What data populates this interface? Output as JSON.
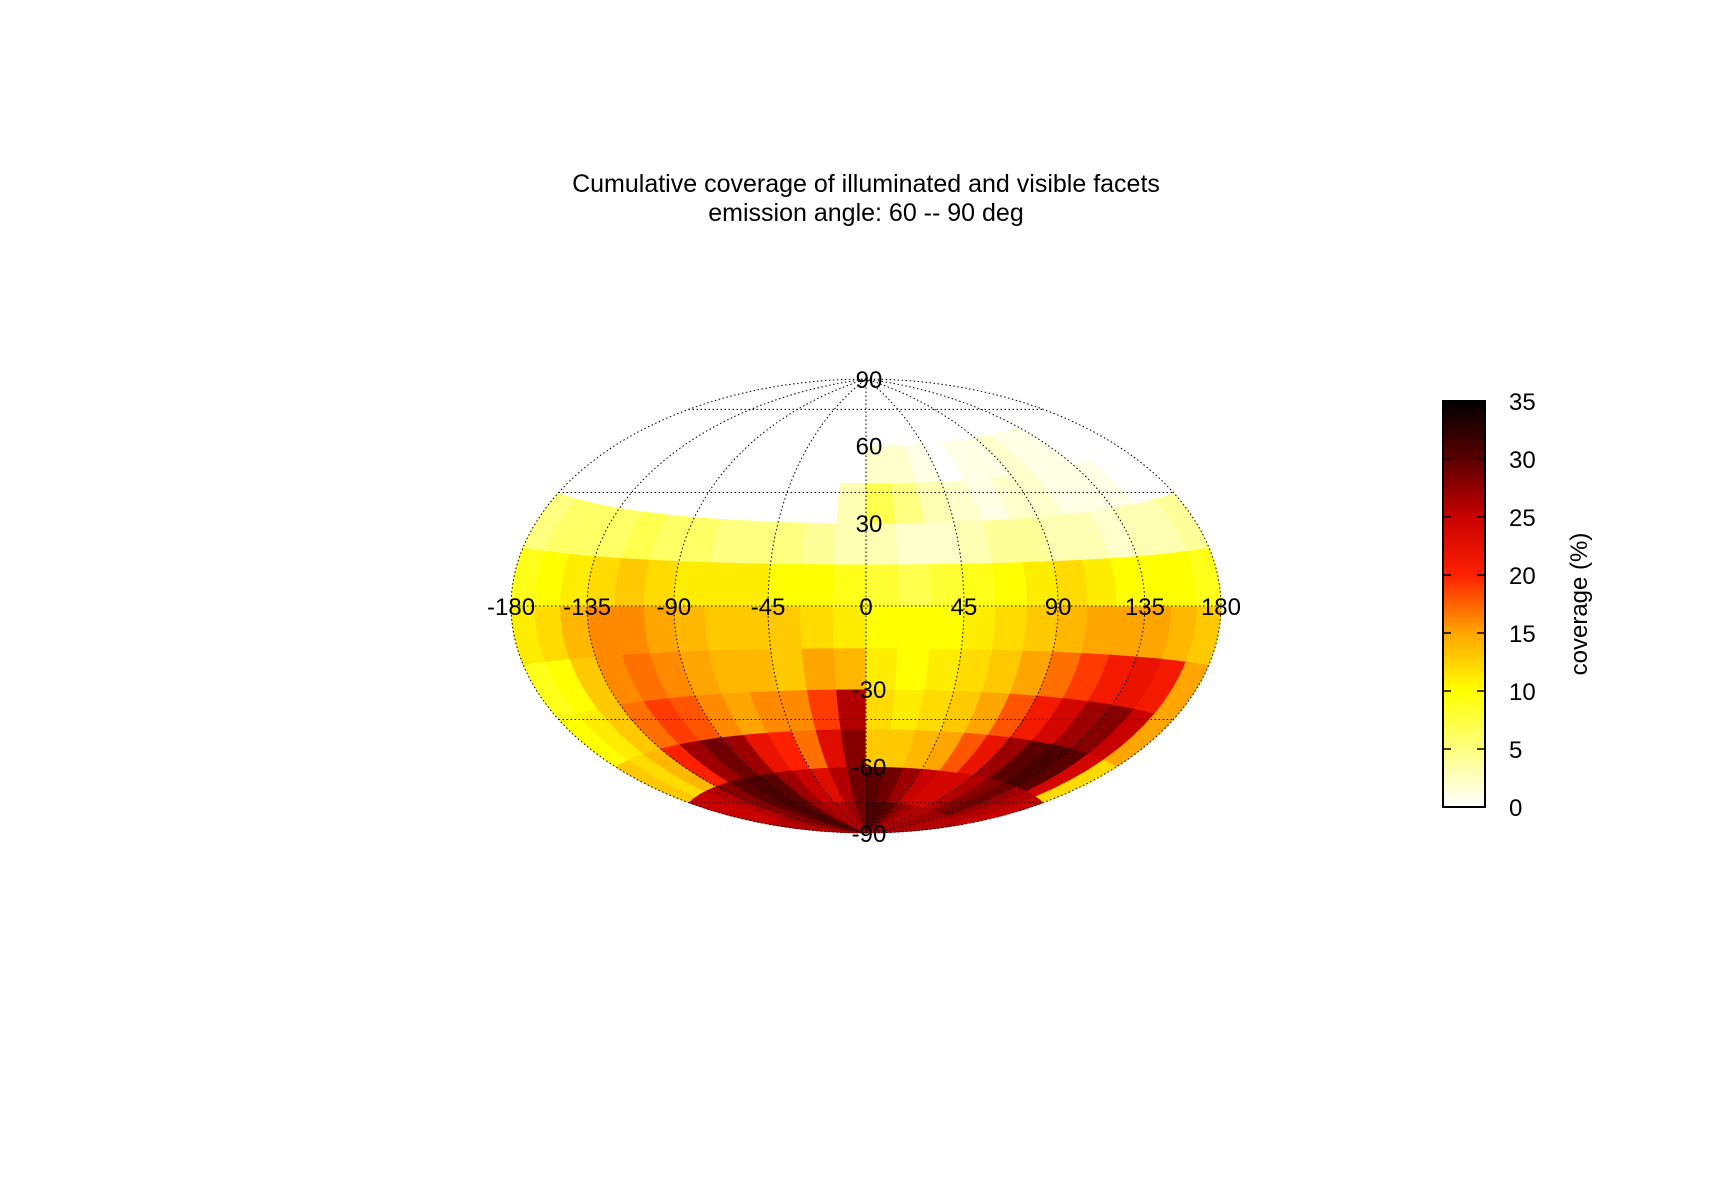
{
  "chart_data": {
    "type": "heatmap",
    "projection": "hammer-aitoff",
    "title": "Cumulative coverage of illuminated and visible facets",
    "subtitle": "emission angle: 60 -- 90 deg",
    "x_ticks": [
      "-180",
      "-135",
      "-90",
      "-45",
      "0",
      "45",
      "90",
      "135",
      "180"
    ],
    "y_ticks": [
      "90",
      "60",
      "30",
      "-30",
      "-60",
      "-90"
    ],
    "xlim": [
      -180,
      180
    ],
    "ylim": [
      -90,
      90
    ],
    "grid": true,
    "colorbar": {
      "label": "coverage (%)",
      "ticks": [
        "0",
        "5",
        "10",
        "15",
        "20",
        "25",
        "30",
        "35"
      ],
      "range": [
        0,
        35
      ],
      "colormap": [
        "#ffffff",
        "#ffff80",
        "#ffff00",
        "#ffa500",
        "#ff2000",
        "#c80000",
        "#5a0000",
        "#000000"
      ],
      "colormap_stops": [
        0,
        5,
        10,
        15,
        20,
        25,
        30,
        35
      ]
    },
    "lon_bins": [
      -180,
      -165,
      -150,
      -135,
      -120,
      -105,
      -90,
      -75,
      -60,
      -45,
      -30,
      -15,
      0,
      15,
      30,
      45,
      60,
      75,
      90,
      105,
      120,
      135,
      150,
      165,
      180
    ],
    "lat_bins": [
      -90,
      -75,
      -60,
      -45,
      -30,
      -15,
      0,
      15,
      30,
      45,
      60,
      75,
      90
    ],
    "values": [
      [
        26,
        26,
        27,
        28,
        30,
        31,
        30,
        27,
        26,
        26,
        27,
        29,
        31,
        31,
        30,
        28,
        27,
        26,
        26,
        27,
        27,
        26,
        26,
        26
      ],
      [
        25,
        25,
        26,
        28,
        30,
        31,
        30,
        27,
        25,
        23,
        26,
        29,
        30,
        29,
        27,
        25,
        24,
        24,
        26,
        28,
        29,
        27,
        26,
        25
      ],
      [
        13,
        12,
        14,
        20,
        27,
        29,
        27,
        22,
        20,
        17,
        23,
        28,
        13,
        13,
        14,
        15,
        18,
        22,
        27,
        30,
        31,
        30,
        24,
        12
      ],
      [
        10,
        11,
        13,
        17,
        19,
        18,
        16,
        15,
        16,
        16,
        19,
        26,
        12,
        11,
        12,
        13,
        15,
        18,
        21,
        24,
        27,
        28,
        25,
        15
      ],
      [
        9,
        10,
        13,
        16,
        17,
        16,
        15,
        14,
        14,
        13,
        15,
        14,
        11,
        10,
        11,
        12,
        13,
        15,
        17,
        19,
        21,
        22,
        21,
        15
      ],
      [
        11,
        12,
        14,
        16,
        16,
        15,
        14,
        13,
        13,
        13,
        12,
        11,
        10,
        10,
        10,
        11,
        12,
        13,
        14,
        15,
        15,
        15,
        14,
        13
      ],
      [
        9,
        10,
        11,
        12,
        13,
        12,
        11,
        11,
        11,
        10,
        10,
        9,
        8,
        7,
        8,
        9,
        10,
        11,
        12,
        11,
        10,
        10,
        10,
        9
      ],
      [
        5,
        6,
        6,
        6,
        7,
        6,
        6,
        5,
        5,
        5,
        4,
        3,
        3,
        2,
        2,
        3,
        4,
        4,
        3,
        3,
        2,
        3,
        3,
        4
      ],
      [
        0,
        0,
        0,
        0,
        0,
        0,
        0,
        0,
        0,
        0,
        0,
        3,
        7,
        5,
        3,
        2,
        1,
        2,
        2,
        1,
        1,
        1,
        0,
        0
      ],
      [
        0,
        0,
        0,
        0,
        0,
        0,
        0,
        0,
        0,
        0,
        0,
        0,
        2,
        2,
        1,
        0,
        1,
        1,
        2,
        1,
        1,
        0,
        0,
        0
      ],
      [
        0,
        0,
        0,
        0,
        0,
        0,
        0,
        0,
        0,
        0,
        0,
        0,
        0,
        0,
        0,
        0,
        0,
        0,
        0,
        0,
        0,
        0,
        0,
        0
      ],
      [
        0,
        0,
        0,
        0,
        0,
        0,
        0,
        0,
        0,
        0,
        0,
        0,
        0,
        0,
        0,
        0,
        0,
        0,
        0,
        0,
        0,
        0,
        0,
        0
      ]
    ]
  }
}
